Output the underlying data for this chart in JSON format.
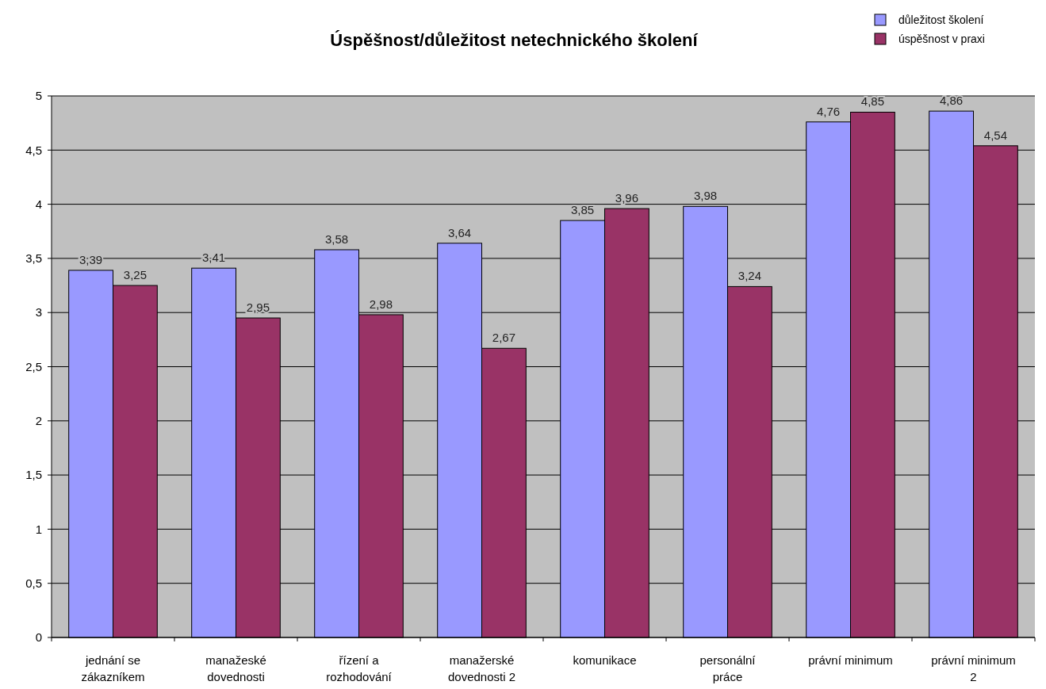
{
  "chart_data": {
    "type": "bar",
    "title": "Úspěšnost/důležitost netechnického školení",
    "categories": [
      "jednání se zákazníkem",
      "manažeské dovednosti",
      "řízení a rozhodování",
      "manažerské dovednosti 2",
      "komunikace",
      "personální práce",
      "právní minimum",
      "právní minimum 2"
    ],
    "series": [
      {
        "name": "důležitost školení",
        "color": "#9999ff",
        "values": [
          3.39,
          3.41,
          3.58,
          3.64,
          3.85,
          3.98,
          4.76,
          4.86
        ],
        "value_labels": [
          "3,39",
          "3,41",
          "3,58",
          "3,64",
          "3,85",
          "3,98",
          "4,76",
          "4,86"
        ]
      },
      {
        "name": "úspěšnost v praxi",
        "color": "#993366",
        "values": [
          3.25,
          2.95,
          2.98,
          2.67,
          3.96,
          3.24,
          4.85,
          4.54
        ],
        "value_labels": [
          "3,25",
          "2,95",
          "2,98",
          "2,67",
          "3,96",
          "3,24",
          "4,85",
          "4,54"
        ]
      }
    ],
    "ylim": [
      0,
      5
    ],
    "yticks": [
      0,
      {
        "value": 0.5,
        "label": "0,5"
      },
      1,
      {
        "value": 1.5,
        "label": "1,5"
      },
      2,
      {
        "value": 2.5,
        "label": "2,5"
      },
      3,
      {
        "value": 3.5,
        "label": "3,5"
      },
      4,
      {
        "value": 4.5,
        "label": "4,5"
      },
      5
    ],
    "grid": "y",
    "legend": "top right"
  }
}
